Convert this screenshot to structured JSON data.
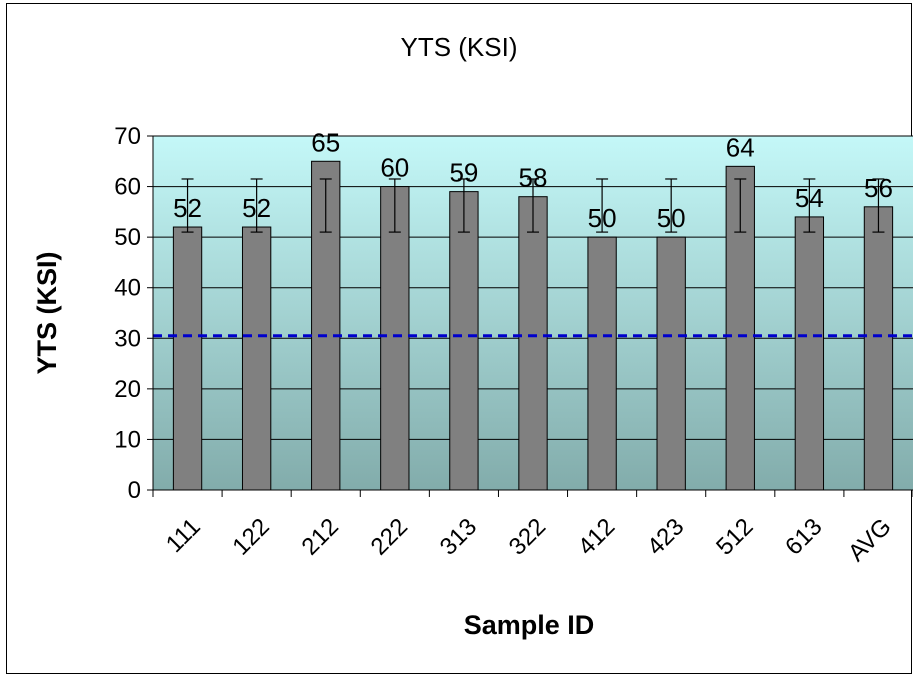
{
  "chart_data": {
    "type": "bar",
    "title": "YTS (KSI)",
    "xlabel": "Sample ID",
    "ylabel": "YTS (KSI)",
    "categories": [
      "111",
      "122",
      "212",
      "222",
      "313",
      "322",
      "412",
      "423",
      "512",
      "613",
      "AVG"
    ],
    "values": [
      52,
      52,
      65,
      60,
      59,
      58,
      50,
      50,
      64,
      54,
      56
    ],
    "data_labels": [
      "52",
      "52",
      "65",
      "60",
      "59",
      "58",
      "50",
      "50",
      "64",
      "54",
      "56"
    ],
    "error_low": [
      51,
      51,
      51,
      51,
      51,
      51,
      51,
      51,
      51,
      51,
      51
    ],
    "error_high": [
      61.5,
      61.5,
      61.5,
      61.5,
      61.5,
      61.5,
      61.5,
      61.5,
      61.5,
      61.5,
      61.5
    ],
    "reference_line": 30.5,
    "ylim": [
      0,
      70
    ],
    "yticks": [
      "0",
      "10",
      "20",
      "30",
      "40",
      "50",
      "60",
      "70"
    ],
    "grid": true,
    "legend": "none",
    "colors": {
      "bar": "#808080",
      "bar_stroke": "#000000",
      "reference_line": "#0000cc",
      "plot_top": "#c4f8f8",
      "plot_bottom": "#82acab",
      "gridline": "#000000"
    }
  }
}
